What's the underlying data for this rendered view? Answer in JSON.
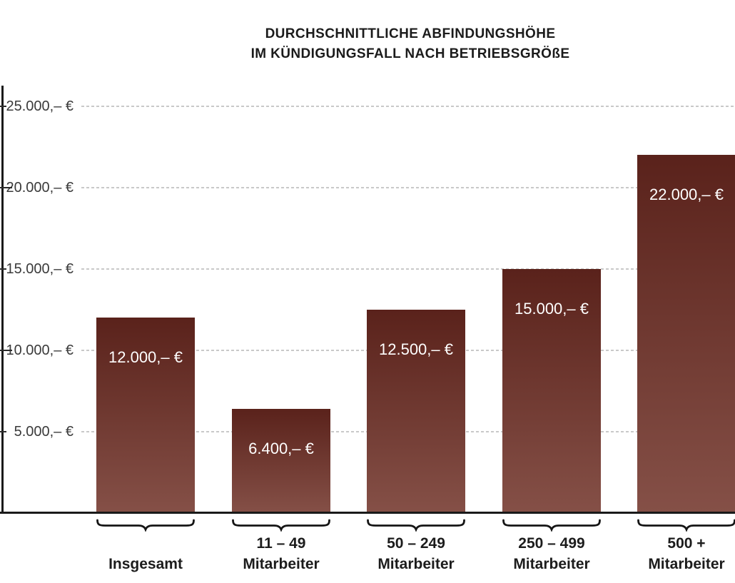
{
  "title": {
    "line1": "DURCHSCHNITTLICHE ABFINDUNGSHÖHE",
    "line2": "IM KÜNDIGUNGSFALL NACH BETRIEBSGRÖßE"
  },
  "chart_data": {
    "type": "bar",
    "title": "DURCHSCHNITTLICHE ABFINDUNGSHÖHE IM KÜNDIGUNGSFALL NACH BETRIEBSGRÖßE",
    "categories": [
      "Insgesamt",
      "11 – 49 Mitarbeiter",
      "50 – 249 Mitarbeiter",
      "250 – 499 Mitarbeiter",
      "500 + Mitarbeiter"
    ],
    "category_lines": [
      [
        "Insgesamt"
      ],
      [
        "11 – 49",
        "Mitarbeiter"
      ],
      [
        "50 – 249",
        "Mitarbeiter"
      ],
      [
        "250 – 499",
        "Mitarbeiter"
      ],
      [
        "500 +",
        "Mitarbeiter"
      ]
    ],
    "values": [
      12000,
      6400,
      12500,
      15000,
      22000
    ],
    "value_labels": [
      "12.000,– €",
      "6.400,– €",
      "12.500,– €",
      "15.000,– €",
      "22.000,– €"
    ],
    "xlabel": "",
    "ylabel": "",
    "y_axis": {
      "tick_values": [
        25000,
        20000,
        15000,
        10000,
        5000
      ],
      "tick_labels": [
        "25.000,– €",
        "20.000,– €",
        "15.000,– €",
        "10.000,– €",
        "5.000,– €"
      ],
      "range": [
        0,
        26250
      ]
    },
    "grid": "dashed-horizontal",
    "legend": "none",
    "value_labels_position": "inside-top",
    "category_marker": "underbrace"
  },
  "colors": {
    "background": "#ffffff",
    "bar_gradient_top": "#5a221b",
    "bar_gradient_bottom": "#855047",
    "axis": "#1a1a1a",
    "gridline": "#c9c9c9",
    "title_text": "#1b1b1b",
    "tick_text": "#3a3a3a",
    "value_text": "#ffffff",
    "category_text": "#1c1c1c",
    "brace": "#151515"
  }
}
